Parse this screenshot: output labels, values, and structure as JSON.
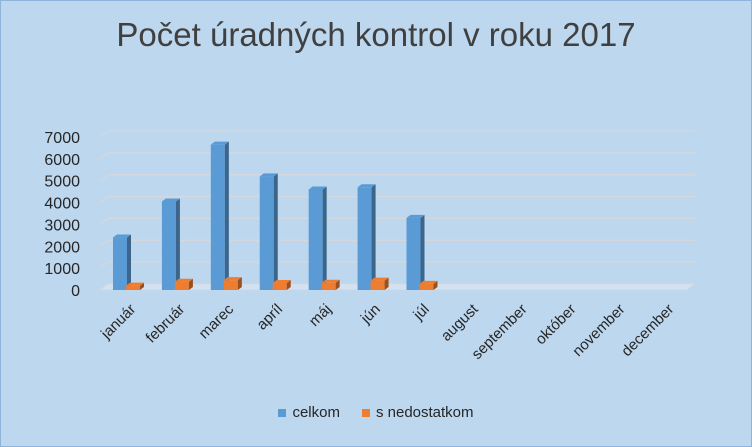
{
  "chart_data": {
    "type": "bar",
    "title": "Počet úradných kontrol v roku 2017",
    "categories": [
      "január",
      "február",
      "marec",
      "apríl",
      "máj",
      "jún",
      "júl",
      "august",
      "september",
      "október",
      "november",
      "december"
    ],
    "series": [
      {
        "name": "celkom",
        "color": "#5b9bd5",
        "values": [
          2400,
          4050,
          6650,
          5200,
          4600,
          4700,
          3300,
          null,
          null,
          null,
          null,
          null
        ]
      },
      {
        "name": "s nedostatkom",
        "color": "#ed7d31",
        "values": [
          200,
          380,
          450,
          320,
          330,
          430,
          280,
          null,
          null,
          null,
          null,
          null
        ]
      }
    ],
    "yticks": [
      0,
      1000,
      2000,
      3000,
      4000,
      5000,
      6000,
      7000
    ],
    "ylim": [
      0,
      7000
    ],
    "grid": true,
    "legend_position": "bottom"
  }
}
